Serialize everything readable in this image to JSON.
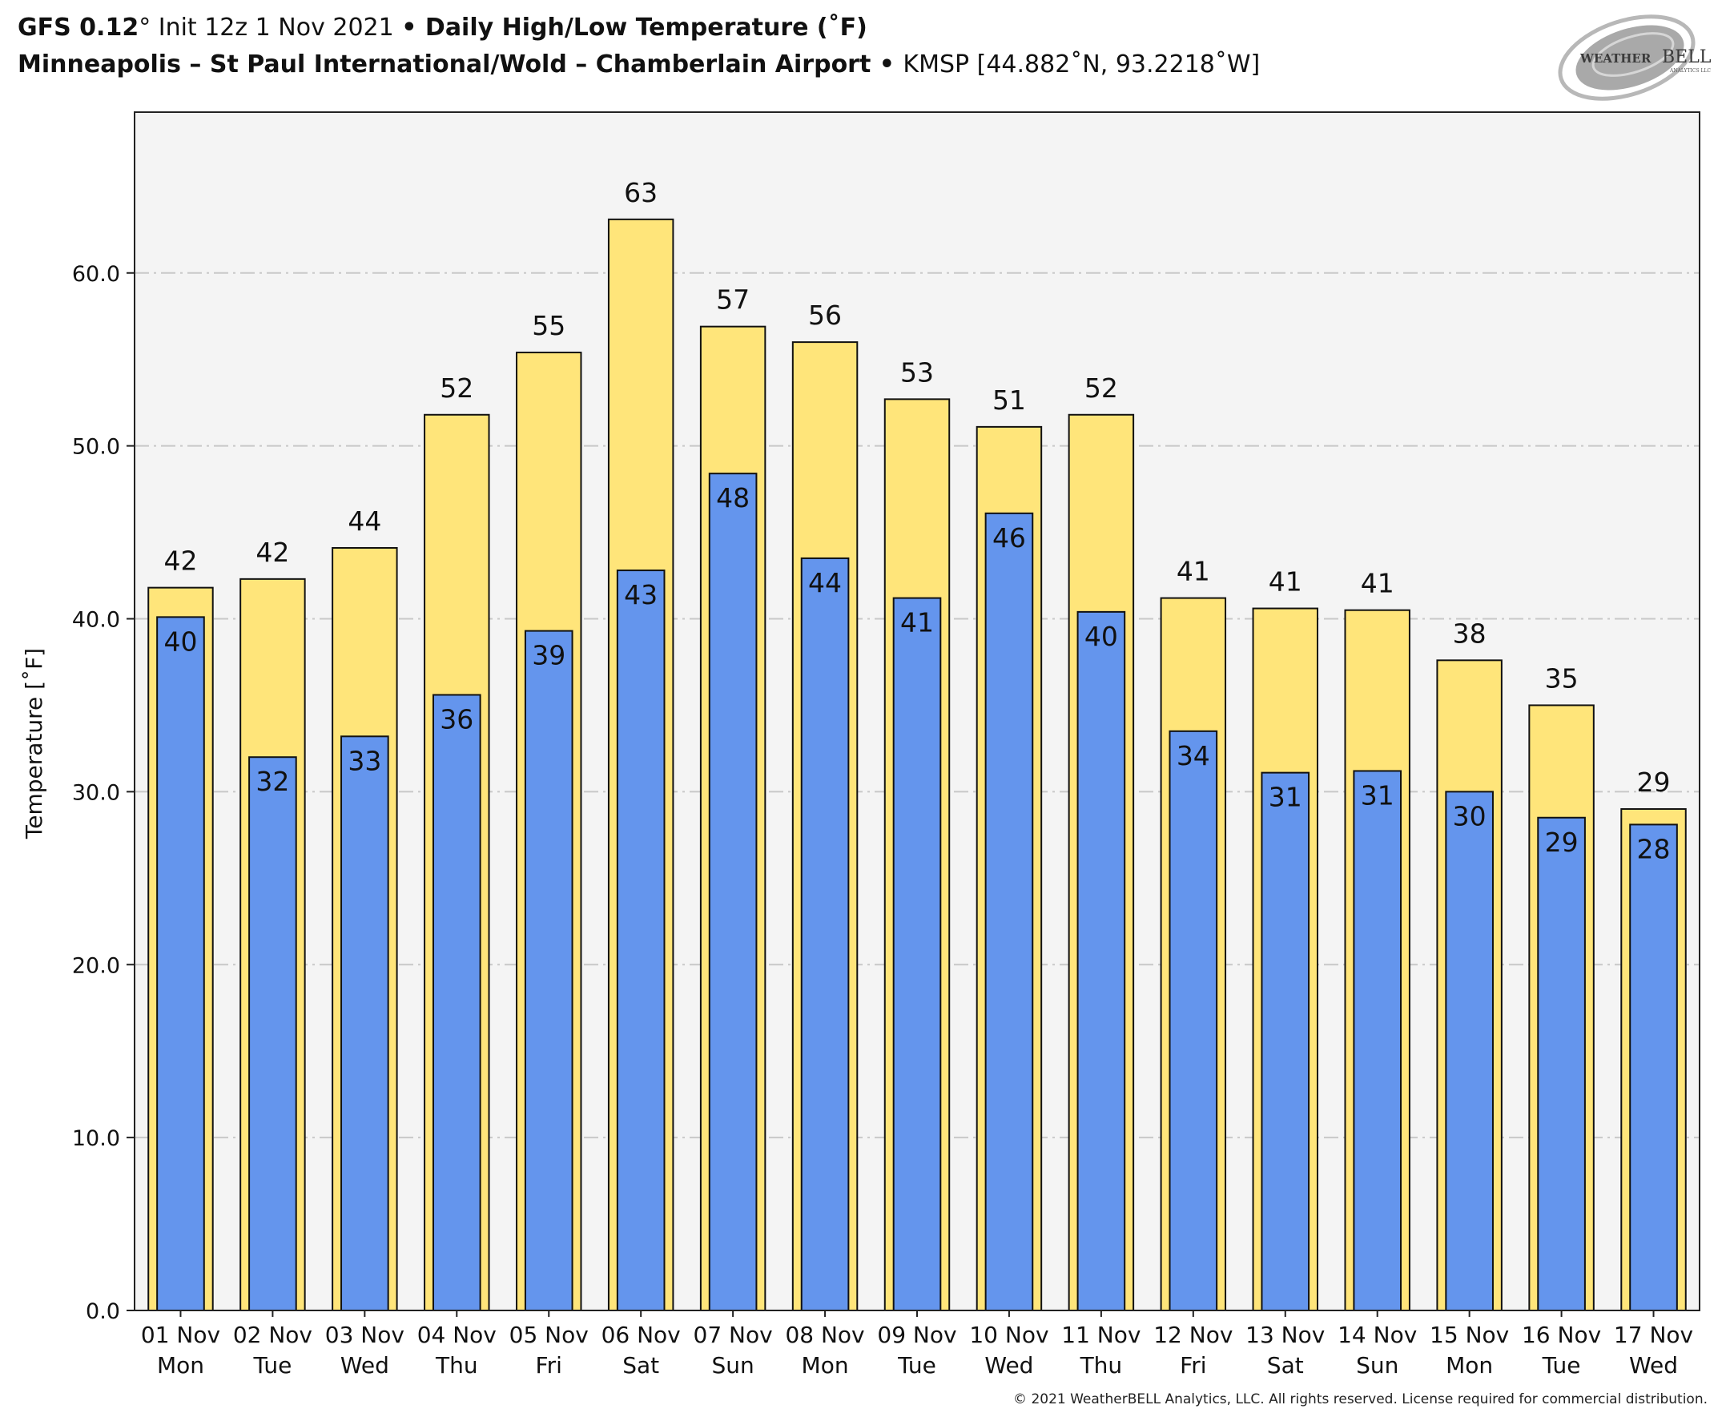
{
  "header": {
    "model": "GFS 0.12",
    "model_deg": "°",
    "init": " Init 12z 1 Nov 2021 ",
    "bullet1": "•",
    "product": " Daily High/Low Temperature (˚F)",
    "station_name": "Minneapolis – St Paul International/Wold – Chamberlain Airport",
    "bullet2": " • ",
    "station_id": "KMSP [44.882˚N, 93.2218˚W]"
  },
  "logo": {
    "name": "WeatherBELL",
    "word1": "WEATHER",
    "word2": "BELL",
    "sub": "ANALYTICS LLC"
  },
  "copyright": "© 2021 WeatherBELL Analytics, LLC. All rights reserved. License required for commercial distribution.",
  "colors": {
    "high": "#FFE57A",
    "low": "#6495ED",
    "plot_bg": "#F4F4F4",
    "grid": "#C8C8C8",
    "edge": "#111111"
  },
  "chart_data": {
    "type": "bar",
    "title": "Daily High/Low Temperature (˚F)",
    "xlabel": "",
    "ylabel": "Temperature [˚F]",
    "ylim": [
      0,
      69.3
    ],
    "yticks": [
      0,
      10,
      20,
      30,
      40,
      50,
      60
    ],
    "ytick_labels": [
      "0.0",
      "10.0",
      "20.0",
      "30.0",
      "40.0",
      "50.0",
      "60.0"
    ],
    "grid": true,
    "grid_style": "dash-dot horizontal",
    "categories": [
      {
        "date": "01 Nov",
        "day": "Mon"
      },
      {
        "date": "02 Nov",
        "day": "Tue"
      },
      {
        "date": "03 Nov",
        "day": "Wed"
      },
      {
        "date": "04 Nov",
        "day": "Thu"
      },
      {
        "date": "05 Nov",
        "day": "Fri"
      },
      {
        "date": "06 Nov",
        "day": "Sat"
      },
      {
        "date": "07 Nov",
        "day": "Sun"
      },
      {
        "date": "08 Nov",
        "day": "Mon"
      },
      {
        "date": "09 Nov",
        "day": "Tue"
      },
      {
        "date": "10 Nov",
        "day": "Wed"
      },
      {
        "date": "11 Nov",
        "day": "Thu"
      },
      {
        "date": "12 Nov",
        "day": "Fri"
      },
      {
        "date": "13 Nov",
        "day": "Sat"
      },
      {
        "date": "14 Nov",
        "day": "Sun"
      },
      {
        "date": "15 Nov",
        "day": "Mon"
      },
      {
        "date": "16 Nov",
        "day": "Tue"
      },
      {
        "date": "17 Nov",
        "day": "Wed"
      }
    ],
    "series": [
      {
        "name": "High",
        "values": [
          41.8,
          42.3,
          44.1,
          51.8,
          55.4,
          63.1,
          56.9,
          56.0,
          52.7,
          51.1,
          51.8,
          41.2,
          40.6,
          40.5,
          37.6,
          35.0,
          29.0
        ],
        "labels": [
          "42",
          "42",
          "44",
          "52",
          "55",
          "63",
          "57",
          "56",
          "53",
          "51",
          "52",
          "41",
          "41",
          "41",
          "38",
          "35",
          "29"
        ]
      },
      {
        "name": "Low",
        "values": [
          40.1,
          32.0,
          33.2,
          35.6,
          39.3,
          42.8,
          48.4,
          43.5,
          41.2,
          46.1,
          40.4,
          33.5,
          31.1,
          31.2,
          30.0,
          28.5,
          28.1
        ],
        "labels": [
          "40",
          "32",
          "33",
          "36",
          "39",
          "43",
          "48",
          "44",
          "41",
          "46",
          "40",
          "34",
          "31",
          "31",
          "30",
          "29",
          "28"
        ]
      }
    ]
  }
}
